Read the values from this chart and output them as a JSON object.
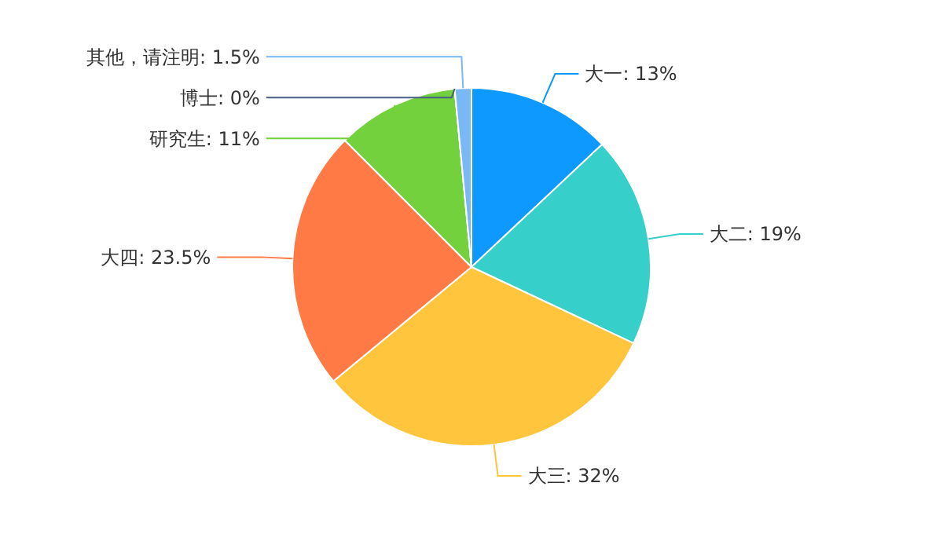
{
  "chart_data": {
    "type": "pie",
    "categories": [
      "大一",
      "大二",
      "大三",
      "大四",
      "研究生",
      "博士",
      "其他，请注明"
    ],
    "values": [
      13,
      19,
      32,
      23.5,
      11,
      0,
      1.5
    ],
    "value_labels": [
      ": 13%",
      ": 19%",
      ": 32%",
      ": 23.5%",
      ": 11%",
      ": 0%",
      ": 1.5%"
    ],
    "colors": [
      "#0d99ff",
      "#36cfc9",
      "#ffc53d",
      "#ff7a45",
      "#73d13d",
      "#4a5f85",
      "#7ab8f5"
    ]
  }
}
